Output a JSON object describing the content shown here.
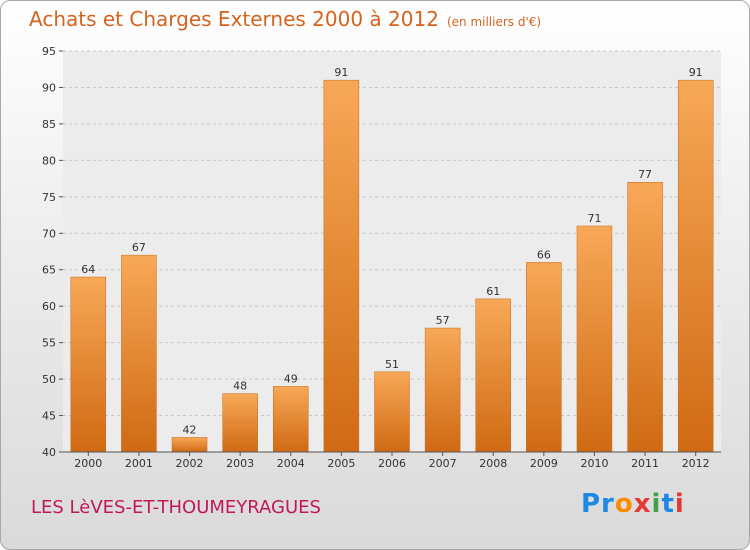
{
  "header": {
    "title": "Achats et Charges Externes 2000 à 2012",
    "unit": "(en milliers d'€)"
  },
  "footer": {
    "location": "LES LèVES-ET-THOUMEYRAGUES",
    "logo_text": "Proxiti"
  },
  "colors": {
    "bar_top": "#f7a857",
    "bar_bottom": "#d06a14",
    "title": "#d4641e",
    "location": "#c2185b"
  },
  "chart_data": {
    "type": "bar",
    "title": "Achats et Charges Externes 2000 à 2012",
    "subtitle": "(en milliers d'€)",
    "categories": [
      "2000",
      "2001",
      "2002",
      "2003",
      "2004",
      "2005",
      "2006",
      "2007",
      "2008",
      "2009",
      "2010",
      "2011",
      "2012"
    ],
    "values": [
      64,
      67,
      42,
      48,
      49,
      91,
      51,
      57,
      61,
      66,
      71,
      77,
      91
    ],
    "ylim": [
      40,
      95
    ],
    "yticks": [
      40,
      45,
      50,
      55,
      60,
      65,
      70,
      75,
      80,
      85,
      90,
      95
    ],
    "grid": true,
    "legend": "none"
  }
}
